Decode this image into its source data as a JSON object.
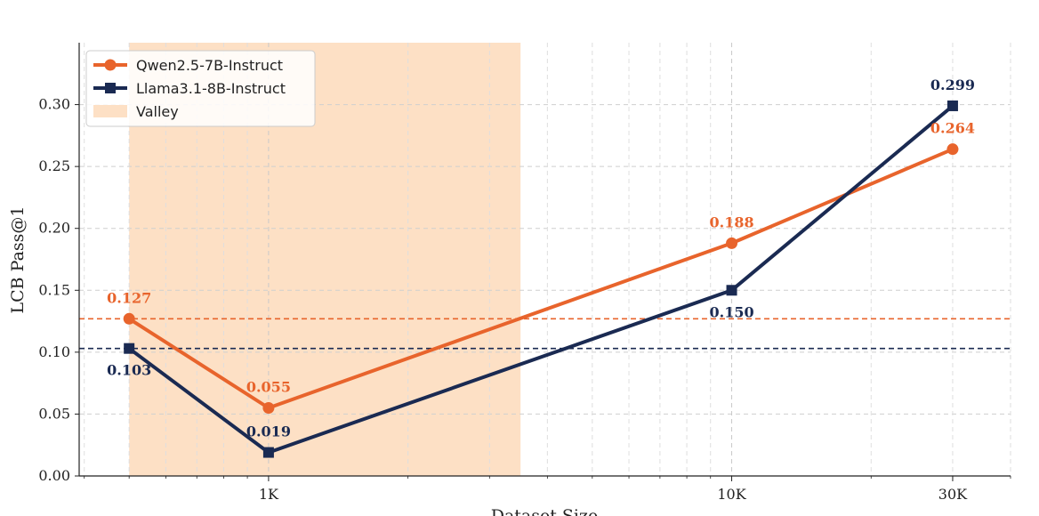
{
  "chart_data": {
    "type": "line",
    "xscale": "log",
    "xlabel": "Dataset Size",
    "ylabel": "LCB Pass@1",
    "xlim": [
      390,
      40000
    ],
    "ylim": [
      0,
      0.35
    ],
    "x_ticks": [
      {
        "value": 1000,
        "label": "1K"
      },
      {
        "value": 10000,
        "label": "10K"
      },
      {
        "value": 30000,
        "label": "30K"
      }
    ],
    "y_ticks": [
      {
        "value": 0.0,
        "label": "0.00"
      },
      {
        "value": 0.05,
        "label": "0.05"
      },
      {
        "value": 0.1,
        "label": "0.10"
      },
      {
        "value": 0.15,
        "label": "0.15"
      },
      {
        "value": 0.2,
        "label": "0.20"
      },
      {
        "value": 0.25,
        "label": "0.25"
      },
      {
        "value": 0.3,
        "label": "0.30"
      }
    ],
    "grid": true,
    "legend_position": "top-left",
    "valley": {
      "name": "Valley",
      "x_start": 500,
      "x_end": 3500,
      "color": "#fde0c5"
    },
    "series": [
      {
        "name": "Qwen2.5-7B-Instruct",
        "color": "#e8642c",
        "marker": "circle",
        "x": [
          500,
          1000,
          10000,
          30000
        ],
        "y": [
          0.127,
          0.055,
          0.188,
          0.264
        ],
        "labels": [
          "0.127",
          "0.055",
          "0.188",
          "0.264"
        ],
        "label_pos": [
          "above",
          "above",
          "above",
          "above"
        ],
        "baseline": 0.127
      },
      {
        "name": "Llama3.1-8B-Instruct",
        "color": "#1a2a52",
        "marker": "square",
        "x": [
          500,
          1000,
          10000,
          30000
        ],
        "y": [
          0.103,
          0.019,
          0.15,
          0.299
        ],
        "labels": [
          "0.103",
          "0.019",
          "0.150",
          "0.299"
        ],
        "label_pos": [
          "below",
          "above",
          "below",
          "above"
        ],
        "baseline": 0.103
      }
    ]
  }
}
